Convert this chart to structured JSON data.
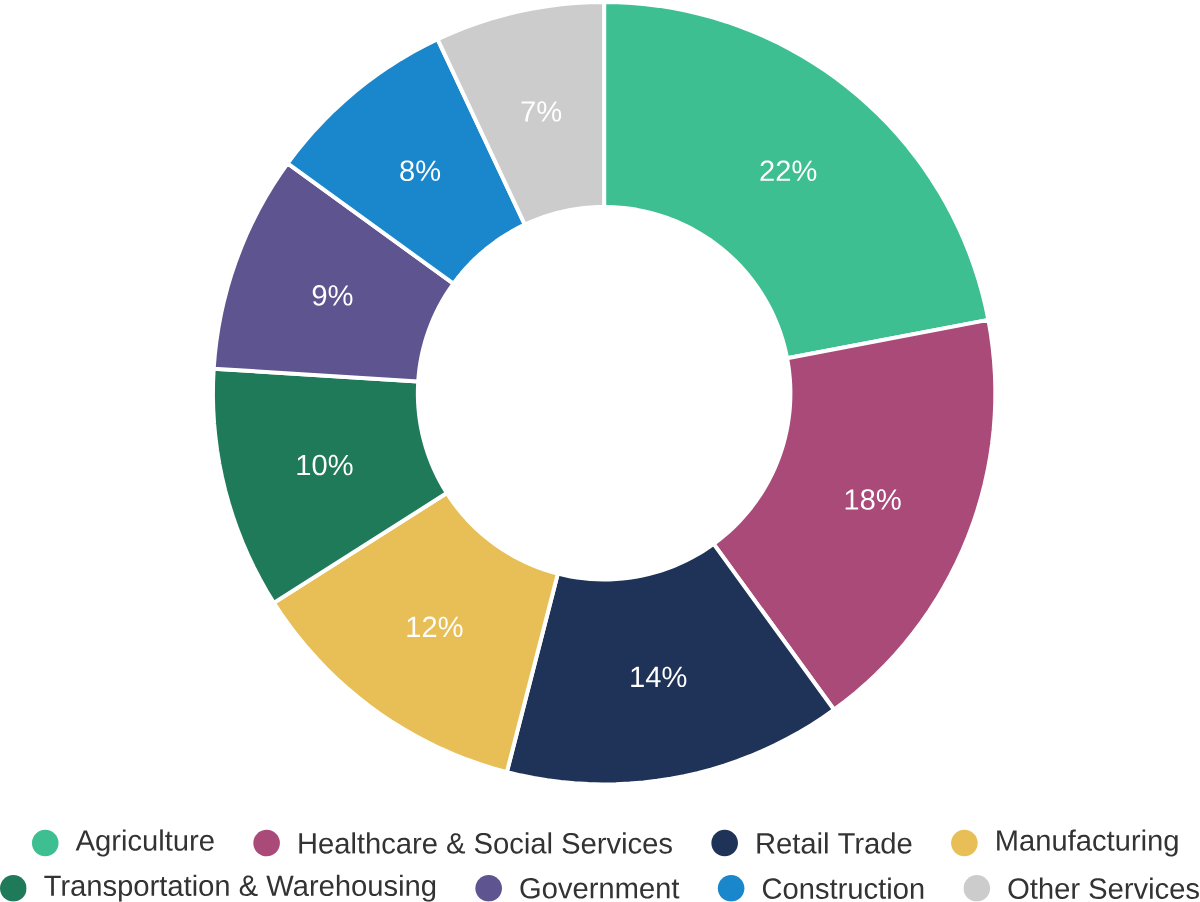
{
  "chart_data": {
    "type": "donut",
    "categories": [
      "Agriculture",
      "Healthcare & Social Services",
      "Retail Trade",
      "Manufacturing",
      "Transportation & Warehousing",
      "Government",
      "Construction",
      "Other Services"
    ],
    "values": [
      22,
      18,
      14,
      12,
      10,
      9,
      8,
      7
    ],
    "value_labels": [
      "22%",
      "18%",
      "14%",
      "12%",
      "10%",
      "9%",
      "8%",
      "7%"
    ],
    "colors": [
      "#3dbf92",
      "#a94a78",
      "#1f3358",
      "#e8bf56",
      "#1f7a5a",
      "#5e5490",
      "#1a86cc",
      "#cccccc"
    ],
    "legend": "bottom"
  }
}
